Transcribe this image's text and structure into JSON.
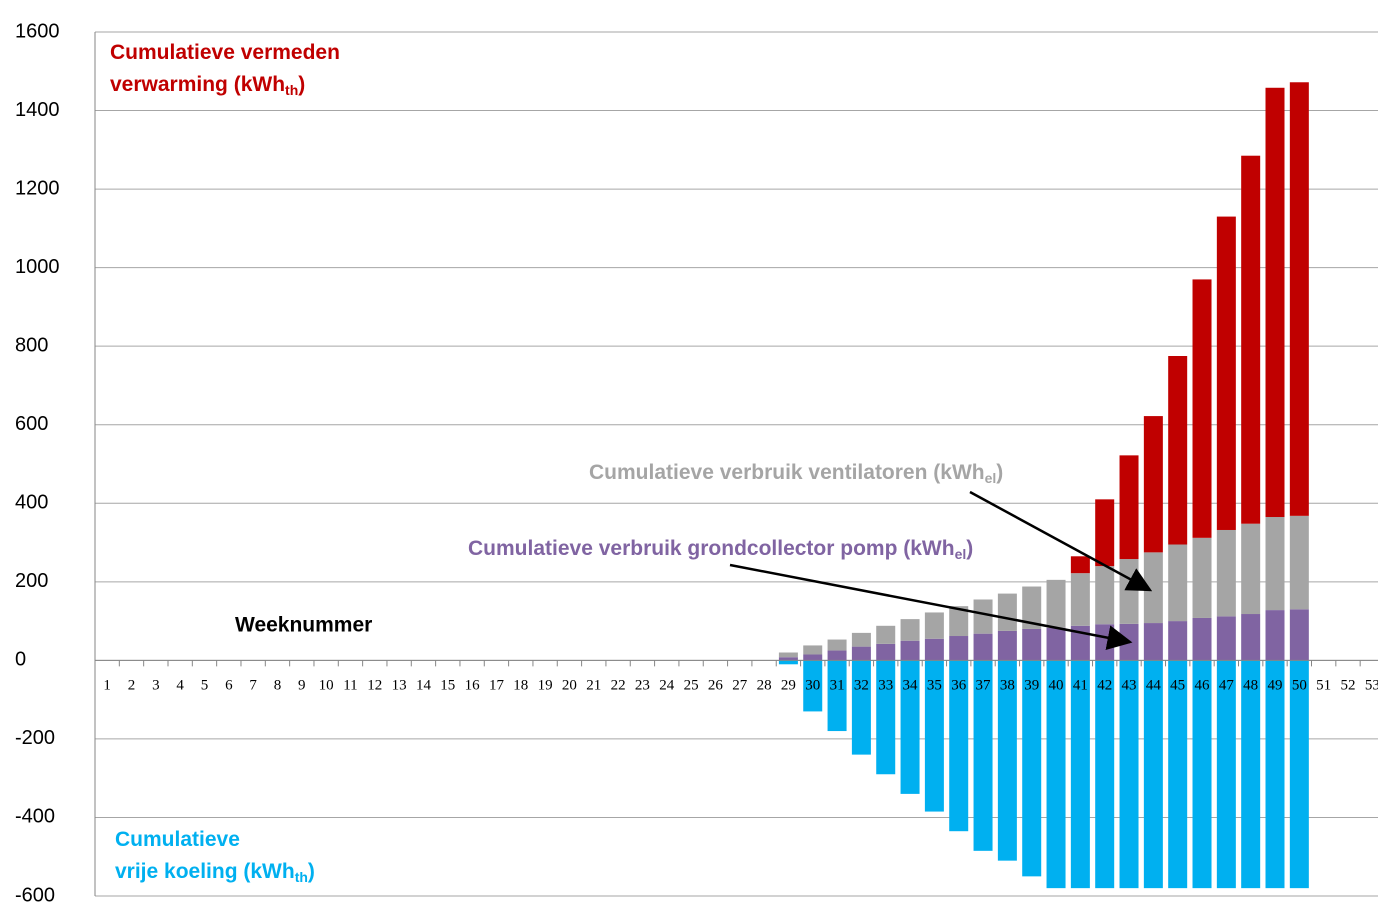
{
  "chart_data": {
    "type": "bar",
    "stacked": true,
    "x_label": "Weeknummer",
    "categories": [
      "1",
      "2",
      "3",
      "4",
      "5",
      "6",
      "7",
      "8",
      "9",
      "10",
      "11",
      "12",
      "13",
      "14",
      "15",
      "16",
      "17",
      "18",
      "19",
      "20",
      "21",
      "22",
      "23",
      "24",
      "25",
      "26",
      "27",
      "28",
      "29",
      "30",
      "31",
      "32",
      "33",
      "34",
      "35",
      "36",
      "37",
      "38",
      "39",
      "40",
      "41",
      "42",
      "43",
      "44",
      "45",
      "46",
      "47",
      "48",
      "49",
      "50",
      "51",
      "52",
      "53"
    ],
    "ylim": [
      -600,
      1600
    ],
    "yticks": [
      -600,
      -400,
      -200,
      0,
      200,
      400,
      600,
      800,
      1000,
      1200,
      1400,
      1600
    ],
    "grid": true,
    "series": [
      {
        "label": [
          "Cumulatieve verbruik grondcollector pomp (kWh",
          "el",
          ")"
        ],
        "color": "#8064a2",
        "values": [
          null,
          null,
          null,
          null,
          null,
          null,
          null,
          null,
          null,
          null,
          null,
          null,
          null,
          null,
          null,
          null,
          null,
          null,
          null,
          null,
          null,
          null,
          null,
          null,
          null,
          null,
          null,
          null,
          8,
          15,
          25,
          35,
          42,
          50,
          55,
          62,
          68,
          75,
          80,
          83,
          88,
          92,
          93,
          95,
          100,
          108,
          112,
          118,
          128,
          130,
          null,
          null,
          null
        ]
      },
      {
        "label": [
          "Cumulatieve verbruik ventilatoren (kWh",
          "el",
          ")"
        ],
        "color": "#a5a5a5",
        "values": [
          null,
          null,
          null,
          null,
          null,
          null,
          null,
          null,
          null,
          null,
          null,
          null,
          null,
          null,
          null,
          null,
          null,
          null,
          null,
          null,
          null,
          null,
          null,
          null,
          null,
          null,
          null,
          null,
          12,
          23,
          28,
          35,
          46,
          55,
          67,
          76,
          87,
          95,
          108,
          122,
          134,
          148,
          165,
          180,
          195,
          204,
          220,
          230,
          237,
          238,
          null,
          null,
          null
        ]
      },
      {
        "label": [
          "Cumulatieve vermeden",
          "verwarming (kWh",
          "th",
          ")"
        ],
        "color": "#c00000",
        "values": [
          null,
          null,
          null,
          null,
          null,
          null,
          null,
          null,
          null,
          null,
          null,
          null,
          null,
          null,
          null,
          null,
          null,
          null,
          null,
          null,
          null,
          null,
          null,
          null,
          null,
          null,
          null,
          null,
          null,
          null,
          null,
          null,
          null,
          null,
          null,
          null,
          null,
          null,
          null,
          null,
          43,
          170,
          264,
          347,
          480,
          658,
          798,
          937,
          1093,
          1104,
          null,
          null,
          null
        ]
      },
      {
        "label": [
          "Cumulatieve",
          "vrije koeling (kWh",
          "th",
          ")"
        ],
        "color": "#00b0f0",
        "values": [
          null,
          null,
          null,
          null,
          null,
          null,
          null,
          null,
          null,
          null,
          null,
          null,
          null,
          null,
          null,
          null,
          null,
          null,
          null,
          null,
          null,
          null,
          null,
          null,
          null,
          null,
          null,
          null,
          -10,
          -130,
          -180,
          -240,
          -290,
          -340,
          -385,
          -435,
          -485,
          -510,
          -550,
          -580,
          -580,
          -580,
          -580,
          -580,
          -580,
          -580,
          -580,
          -580,
          -580,
          -580,
          null,
          null,
          null
        ]
      }
    ]
  }
}
